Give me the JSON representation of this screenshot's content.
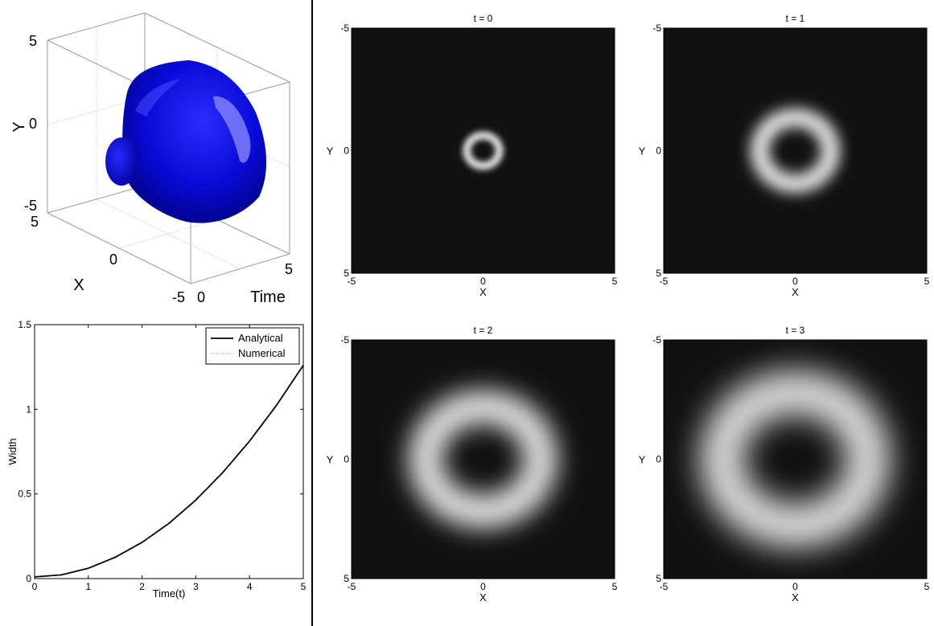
{
  "chart_data": [
    {
      "type": "surface3d",
      "xlabel": "X",
      "ylabel": "Y",
      "zlabel": "Time",
      "x_ticks": [
        "5",
        "0",
        "-5"
      ],
      "y_ticks": [
        "5",
        "0",
        "-5"
      ],
      "time_ticks": [
        "0",
        "5"
      ],
      "xlim": [
        -5,
        5
      ],
      "ylim": [
        -5,
        5
      ],
      "timelim": [
        0,
        5
      ],
      "surface_color": "#0a0ad8"
    },
    {
      "type": "line",
      "xlabel": "Time(t)",
      "ylabel": "Width",
      "xlim": [
        0,
        5
      ],
      "ylim": [
        0,
        1.5
      ],
      "x_ticks": [
        0,
        1,
        2,
        3,
        4,
        5
      ],
      "x_tick_labels": [
        "0",
        "1",
        "2",
        "3",
        "4",
        "5"
      ],
      "y_ticks": [
        0,
        0.5,
        1,
        1.5
      ],
      "y_tick_labels": [
        "0",
        "0.5",
        "1",
        "1.5"
      ],
      "legend_position": "top-right",
      "series": [
        {
          "name": "Analytical",
          "style": "solid",
          "color": "#000000",
          "x": [
            0,
            0.5,
            1,
            1.5,
            2,
            2.5,
            3,
            3.5,
            4,
            4.5,
            5
          ],
          "y": [
            0.01,
            0.022,
            0.061,
            0.126,
            0.214,
            0.326,
            0.464,
            0.626,
            0.812,
            1.023,
            1.26
          ]
        },
        {
          "name": "Numerical",
          "style": "dotted",
          "color": "#777777",
          "x": [
            0,
            0.5,
            1,
            1.5,
            2,
            2.5,
            3,
            3.5,
            4,
            4.5,
            5
          ],
          "y": [
            0.01,
            0.022,
            0.061,
            0.126,
            0.214,
            0.326,
            0.464,
            0.626,
            0.812,
            1.023,
            1.26
          ]
        }
      ]
    },
    {
      "type": "heatmap",
      "panels": [
        {
          "title": "t = 0",
          "xlabel": "X",
          "ylabel": "Y",
          "ring_radius": 0.62,
          "ring_width": 0.3
        },
        {
          "title": "t = 1",
          "xlabel": "X",
          "ylabel": "Y",
          "ring_radius": 1.35,
          "ring_width": 0.7
        },
        {
          "title": "t = 2",
          "xlabel": "X",
          "ylabel": "Y",
          "ring_radius": 2.2,
          "ring_width": 1.25
        },
        {
          "title": "t = 3",
          "xlabel": "X",
          "ylabel": "Y",
          "ring_radius": 2.8,
          "ring_width": 1.6
        }
      ],
      "xlim": [
        -5,
        5
      ],
      "ylim": [
        -5,
        5
      ],
      "x_ticks": [
        -5,
        0,
        5
      ],
      "x_tick_labels": [
        "-5",
        "0",
        "5"
      ],
      "y_ticks": [
        -5,
        0,
        5
      ],
      "y_tick_labels": [
        "-5",
        "0",
        "5"
      ],
      "background_color": "#111111",
      "ring_color": "#e6e6e6"
    }
  ]
}
